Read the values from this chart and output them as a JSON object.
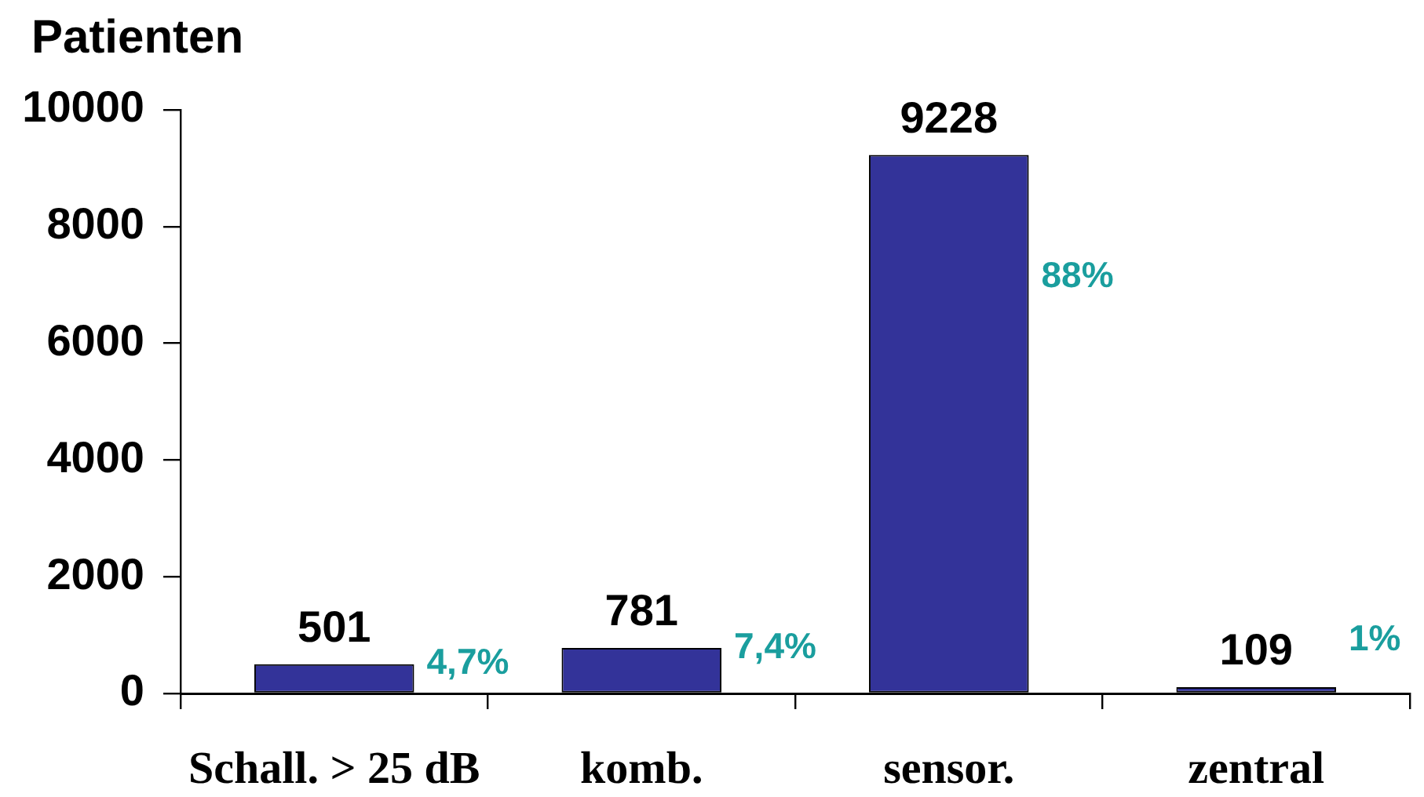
{
  "chart_data": {
    "type": "bar",
    "ylabel": "Patienten",
    "categories": [
      "Schall. > 25 dB",
      "komb.",
      "sensor.",
      "zentral"
    ],
    "values": [
      501,
      781,
      9228,
      109
    ],
    "color": "#333399",
    "ylim": [
      0,
      10000
    ],
    "yticks": [
      0,
      2000,
      4000,
      6000,
      8000,
      10000
    ],
    "data_labels": true,
    "annotations": [
      {
        "text": "4,7%",
        "x": "Schall. > 25 dB",
        "y": 501
      },
      {
        "text": "7,4%",
        "x": "komb.",
        "y": 781
      },
      "88%",
      "1%"
    ]
  }
}
